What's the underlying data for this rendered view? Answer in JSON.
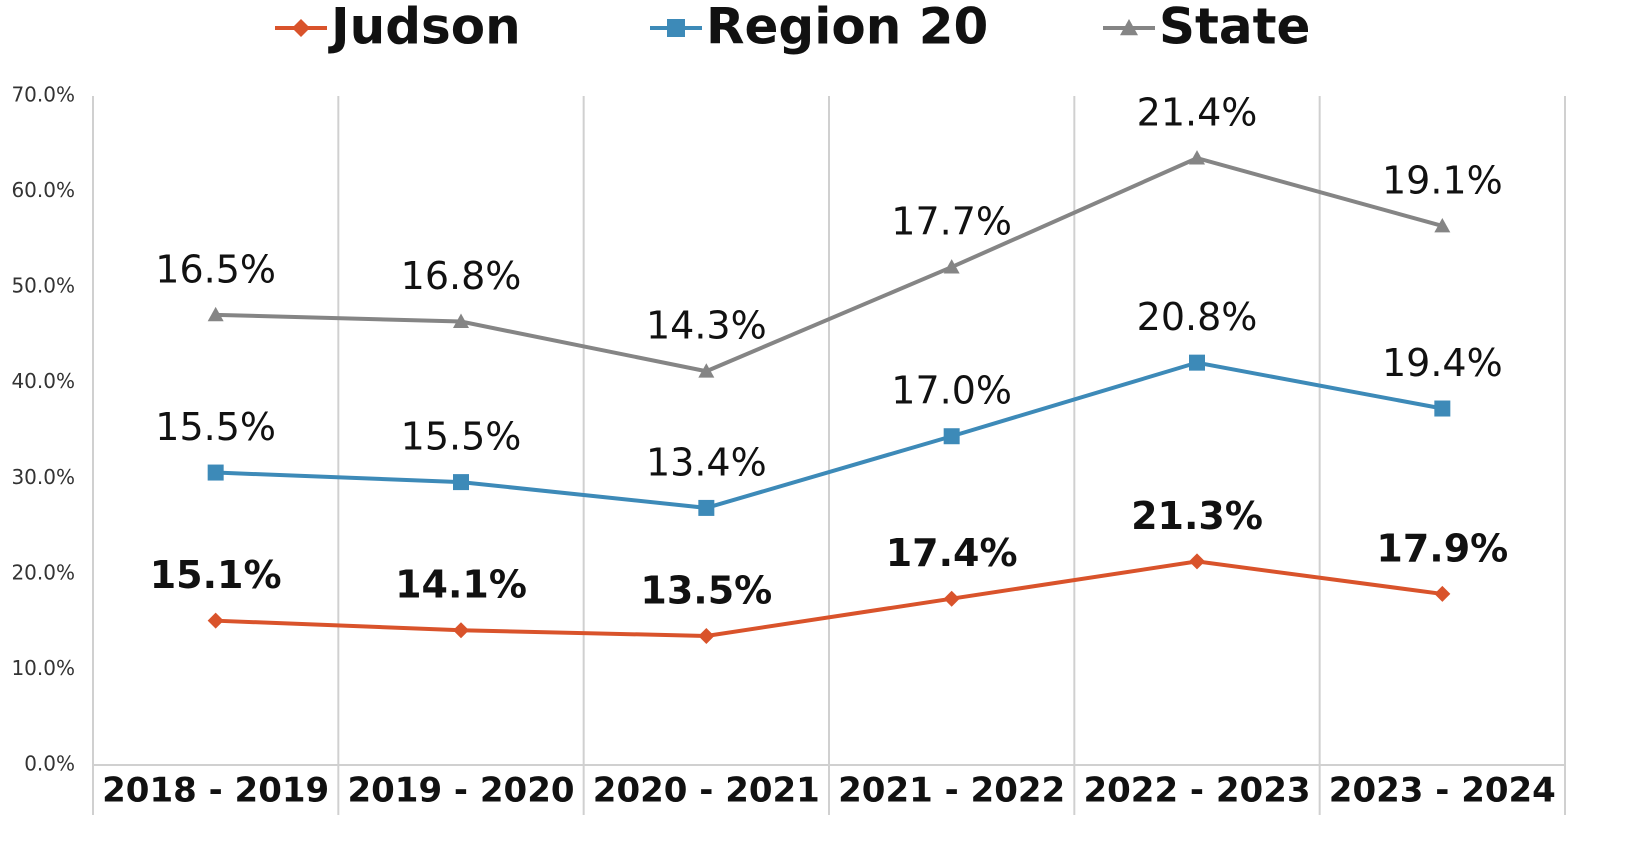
{
  "chart_data": {
    "type": "stacked_line",
    "categories": [
      "2018 - 2019",
      "2019 - 2020",
      "2020 - 2021",
      "2021 - 2022",
      "2022 - 2023",
      "2023 - 2024"
    ],
    "series": [
      {
        "name": "Judson",
        "color": "#d9532b",
        "marker": "diamond",
        "values": [
          15.1,
          14.1,
          13.5,
          17.4,
          21.3,
          17.9
        ],
        "value_labels": [
          "15.1%",
          "14.1%",
          "13.5%",
          "17.4%",
          "21.3%",
          "17.9%"
        ]
      },
      {
        "name": "Region 20",
        "color": "#3d8ab8",
        "marker": "square",
        "values": [
          15.5,
          15.5,
          13.4,
          17.0,
          20.8,
          19.4
        ],
        "value_labels": [
          "15.5%",
          "15.5%",
          "13.4%",
          "17.0%",
          "20.8%",
          "19.4%"
        ]
      },
      {
        "name": "State",
        "color": "#858585",
        "marker": "triangle",
        "values": [
          16.5,
          16.8,
          14.3,
          17.7,
          21.4,
          19.1
        ],
        "value_labels": [
          "16.5%",
          "16.8%",
          "14.3%",
          "17.7%",
          "21.4%",
          "19.1%"
        ]
      }
    ],
    "ylim": [
      0,
      70
    ],
    "yticks": [
      {
        "value": 0,
        "label": "0.0%"
      },
      {
        "value": 10,
        "label": "10.0%"
      },
      {
        "value": 20,
        "label": "20.0%"
      },
      {
        "value": 30,
        "label": "30.0%"
      },
      {
        "value": 40,
        "label": "40.0%"
      },
      {
        "value": 50,
        "label": "50.0%"
      },
      {
        "value": 60,
        "label": "60.0%"
      },
      {
        "value": 70,
        "label": "70.0%"
      }
    ],
    "legend": "top"
  }
}
